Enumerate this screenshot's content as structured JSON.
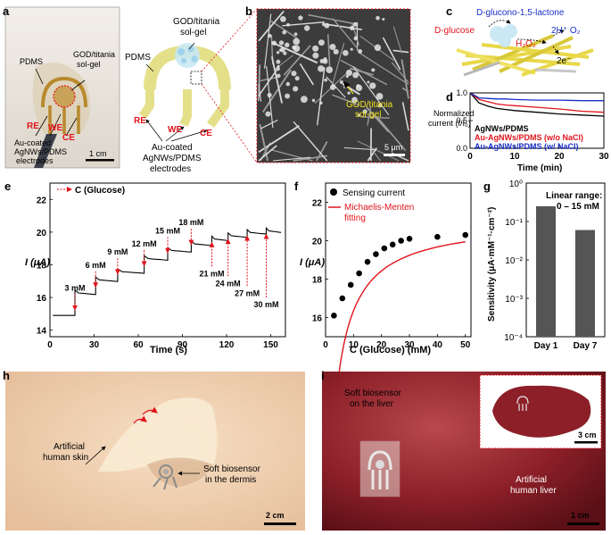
{
  "panels": {
    "a": {
      "letter": "a",
      "pdms": "PDMS",
      "god_l1": "GOD/titania",
      "god_l2": "sol-gel",
      "re": "RE",
      "we": "WE",
      "ce": "CE",
      "au_l1": "Au-coated",
      "au_l2": "AgNWs/PDMS",
      "au_l3": "electrodes",
      "scale": "1 cm"
    },
    "a2": {
      "pdms": "PDMS",
      "god_l1": "GOD/titania",
      "god_l2": "sol-gel",
      "re": "RE",
      "we": "WE",
      "ce": "CE",
      "au_l1": "Au-coated",
      "au_l2": "AgNWs/PDMS",
      "au_l3": "electrodes"
    },
    "b": {
      "letter": "b",
      "label_l1": "GOD/titania",
      "label_l2": "sol-gel",
      "scale": "5 μm"
    },
    "c": {
      "letter": "c",
      "lactone": "D-glucono-1,5-lactone",
      "glucose": "D-glucose",
      "h2o2": "H₂O₂",
      "protons": "2H⁺ O₂",
      "electrons": "2e⁻"
    },
    "d": {
      "letter": "d",
      "ylabel_l1": "Normalized",
      "ylabel_l2": "current (I/I₀)",
      "xlabel": "Time (min)",
      "legend": [
        {
          "name": "AgNWs/PDMS",
          "color": "#000000"
        },
        {
          "name": "Au-AgNWs/PDMS (w/o NaCl)",
          "color": "#e0141c"
        },
        {
          "name": "Au-AgNWs/PDMS (w/ NaCl)",
          "color": "#1a2ec8"
        }
      ],
      "yticks": [
        "0.0",
        "0.5",
        "1.0"
      ],
      "xticks": [
        "0",
        "10",
        "20",
        "30"
      ]
    },
    "e": {
      "letter": "e",
      "legend": "C (Glucose)",
      "ylabel": "I (μA)",
      "xlabel": "Time (s)",
      "yticks": [
        "14",
        "16",
        "18",
        "20",
        "22"
      ],
      "xticks": [
        "0",
        "30",
        "60",
        "90",
        "120",
        "150"
      ],
      "steps": [
        "3 mM",
        "6 mM",
        "9 mM",
        "12 mM",
        "15 mM",
        "18 mM",
        "21 mM",
        "24 mM",
        "27 mM",
        "30 mM"
      ]
    },
    "f": {
      "letter": "f",
      "legend_points": "Sensing current",
      "legend_fit_l1": "Michaelis-Menten",
      "legend_fit_l2": "fitting",
      "ylabel": "I (μA)",
      "xlabel": "C (Glucose) (mM)",
      "yticks": [
        "16",
        "18",
        "20",
        "22"
      ],
      "xticks": [
        "0",
        "10",
        "20",
        "30",
        "40",
        "50"
      ]
    },
    "g": {
      "letter": "g",
      "ylabel": "Sensitivity  (μA·mM⁻¹·cm⁻²)",
      "note_l1": "Linear range:",
      "note_l2": "0 – 15 mM",
      "yticks": [
        "10⁰",
        "10⁻¹",
        "10⁻²",
        "10⁻³",
        "10⁻⁴"
      ],
      "categories": [
        "Day 1",
        "Day 7"
      ]
    },
    "h": {
      "letter": "h",
      "skin_l1": "Artificial",
      "skin_l2": "human skin",
      "bio_l1": "Soft biosensor",
      "bio_l2": "in the dermis",
      "scale": "2 cm"
    },
    "i": {
      "letter": "i",
      "bio_l1": "Soft biosensor",
      "bio_l2": "on the liver",
      "liver_l1": "Artificial",
      "liver_l2": "human liver",
      "inset_scale": "3 cm",
      "scale": "1 cm"
    }
  },
  "chart_data": [
    {
      "panel": "d",
      "type": "line",
      "xlabel": "Time (min)",
      "ylabel": "Normalized current (I/I₀)",
      "xlim": [
        0,
        30
      ],
      "ylim": [
        0.0,
        1.0
      ],
      "x": [
        0,
        2,
        4,
        6,
        8,
        10,
        15,
        20,
        25,
        30
      ],
      "series": [
        {
          "name": "AgNWs/PDMS",
          "color": "#000000",
          "values": [
            1.0,
            0.82,
            0.76,
            0.72,
            0.7,
            0.68,
            0.65,
            0.62,
            0.6,
            0.58
          ]
        },
        {
          "name": "Au-AgNWs/PDMS (w/o NaCl)",
          "color": "#e0141c",
          "values": [
            1.0,
            0.88,
            0.84,
            0.8,
            0.78,
            0.77,
            0.74,
            0.71,
            0.67,
            0.65
          ]
        },
        {
          "name": "Au-AgNWs/PDMS (w/ NaCl)",
          "color": "#1a2ec8",
          "values": [
            1.0,
            0.91,
            0.9,
            0.89,
            0.89,
            0.88,
            0.87,
            0.87,
            0.86,
            0.86
          ]
        }
      ]
    },
    {
      "panel": "e",
      "type": "line",
      "xlabel": "Time (s)",
      "ylabel": "I (μA)",
      "xlim": [
        0,
        160
      ],
      "ylim": [
        13.6,
        23
      ],
      "step_times": [
        17,
        31,
        46,
        64,
        80,
        96,
        110,
        121,
        134,
        147
      ],
      "step_levels": [
        14.9,
        16.3,
        17.1,
        17.6,
        18.4,
        18.9,
        19.3,
        19.6,
        19.8,
        20.0,
        20.1
      ],
      "labels": [
        "3 mM",
        "6 mM",
        "9 mM",
        "12 mM",
        "15 mM",
        "18 mM",
        "21 mM",
        "24 mM",
        "27 mM",
        "30 mM"
      ]
    },
    {
      "panel": "f",
      "type": "scatter",
      "xlabel": "C (Glucose) (mM)",
      "ylabel": "I (μA)",
      "xlim": [
        0,
        52
      ],
      "ylim": [
        15,
        23
      ],
      "points": {
        "name": "Sensing current",
        "x": [
          3,
          6,
          9,
          12,
          15,
          18,
          21,
          24,
          27,
          30,
          40,
          50
        ],
        "y": [
          16.1,
          17.0,
          17.7,
          18.3,
          18.9,
          19.3,
          19.6,
          19.8,
          20.0,
          20.1,
          20.2,
          20.3
        ]
      },
      "fit": {
        "name": "Michaelis-Menten fitting",
        "color": "#e0141c",
        "imax": 21.1,
        "km": 2.9,
        "x_start": 3,
        "x_end": 50
      }
    },
    {
      "panel": "g",
      "type": "bar",
      "categories": [
        "Day 1",
        "Day 7"
      ],
      "values": [
        0.25,
        0.06
      ],
      "yscale": "log",
      "ylim": [
        0.0001,
        1
      ],
      "ylabel": "Sensitivity  (μA·mM⁻¹·cm⁻²)"
    }
  ]
}
